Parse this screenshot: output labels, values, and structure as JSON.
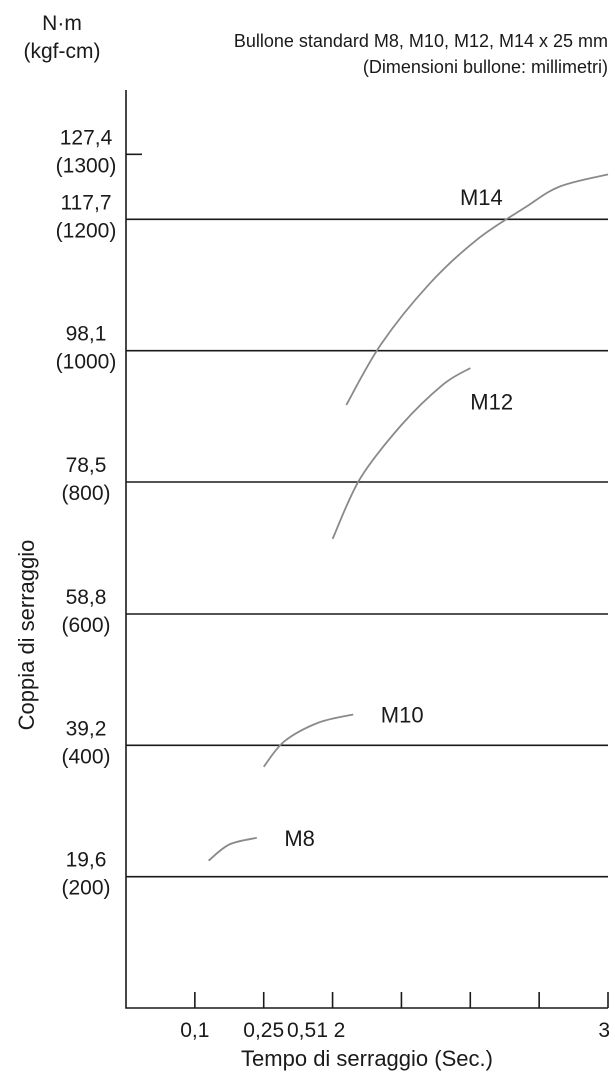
{
  "chart_data": {
    "type": "line",
    "title": "",
    "subtitle_lines": [
      "Bullone standard M8, M10, M12, M14 x 25 mm",
      "(Dimensioni bullone: millimetri)"
    ],
    "y_unit_lines": [
      "N·m",
      "(kgf-cm)"
    ],
    "ylabel": "Coppia di serraggio",
    "xlabel": "Tempo di serraggio (Sec.)",
    "y_ticks": [
      {
        "value": 127.4,
        "label": "127,4",
        "sublabel": "(1300)",
        "grid": false
      },
      {
        "value": 117.7,
        "label": "117,7",
        "sublabel": "(1200)",
        "grid": true
      },
      {
        "value": 98.1,
        "label": "98,1",
        "sublabel": "(1000)",
        "grid": true
      },
      {
        "value": 78.5,
        "label": "78,5",
        "sublabel": "(800)",
        "grid": true
      },
      {
        "value": 58.8,
        "label": "58,8",
        "sublabel": "(600)",
        "grid": true
      },
      {
        "value": 39.2,
        "label": "39,2",
        "sublabel": "(400)",
        "grid": true
      },
      {
        "value": 19.6,
        "label": "19,6",
        "sublabel": "(200)",
        "grid": true
      }
    ],
    "x_ticks": [
      {
        "pos": 1,
        "label": "0,1"
      },
      {
        "pos": 2,
        "label": "0,25"
      },
      {
        "pos": 3,
        "label": ""
      },
      {
        "pos": 4,
        "label": ""
      },
      {
        "pos": 5,
        "label": ""
      },
      {
        "pos": 6,
        "label": ""
      },
      {
        "pos": 7,
        "label": "3"
      }
    ],
    "x_label_positions": [
      {
        "label": "0,5",
        "pos": 2.55
      },
      {
        "label": "1",
        "pos": 2.85
      },
      {
        "label": "2",
        "pos": 3.1
      }
    ],
    "xlim": [
      0,
      7
    ],
    "ylim": [
      0,
      137
    ],
    "grid": true,
    "legend": "none",
    "series": [
      {
        "name": "M8",
        "points": [
          [
            1.2,
            22.0
          ],
          [
            1.5,
            24.4
          ],
          [
            1.9,
            25.4
          ]
        ],
        "label_at": [
          2.3,
          25.4
        ]
      },
      {
        "name": "M10",
        "points": [
          [
            2.0,
            36.0
          ],
          [
            2.3,
            39.8
          ],
          [
            2.8,
            42.6
          ],
          [
            3.3,
            43.8
          ]
        ],
        "label_at": [
          3.7,
          43.8
        ]
      },
      {
        "name": "M12",
        "points": [
          [
            3.0,
            70.0
          ],
          [
            3.4,
            79.0
          ],
          [
            4.0,
            87.0
          ],
          [
            4.6,
            93.0
          ],
          [
            5.0,
            95.5
          ]
        ],
        "label_at": [
          5.0,
          90.5
        ]
      },
      {
        "name": "M14",
        "points": [
          [
            3.2,
            90.0
          ],
          [
            3.7,
            99.0
          ],
          [
            4.4,
            108.0
          ],
          [
            5.1,
            114.7
          ],
          [
            5.8,
            119.5
          ],
          [
            6.3,
            122.6
          ],
          [
            7.0,
            124.4
          ]
        ],
        "label_at": [
          4.85,
          121.0
        ]
      }
    ]
  }
}
